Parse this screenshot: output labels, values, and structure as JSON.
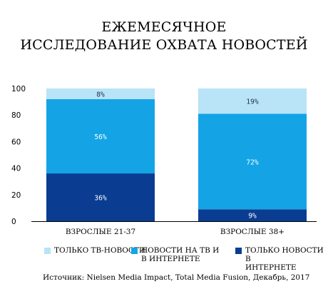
{
  "title_lines": [
    "ЕЖЕМЕСЯЧНОЕ",
    "ИССЛЕДОВАНИЕ ОХВАТА НОВОСТЕЙ"
  ],
  "source": "Источник: Nielsen Media Impact, Total Media Fusion, Декабрь, 2017",
  "chart_data": {
    "type": "bar",
    "stacked": true,
    "categories": [
      "ВЗРОСЛЫЕ 21-37",
      "ВЗРОСЛЫЕ 38+"
    ],
    "series": [
      {
        "name": "ТОЛЬКО НОВОСТИ В\nИНТЕРНЕТЕ",
        "color": "#0a3d91",
        "values": [
          36,
          9
        ],
        "labels": [
          "36%",
          "9%"
        ]
      },
      {
        "name": "НОВОСТИ НА ТВ И\nВ ИНТЕРНЕТЕ",
        "color": "#14a4e6",
        "values": [
          56,
          72
        ],
        "labels": [
          "56%",
          "72%"
        ]
      },
      {
        "name": "ТОЛЬКО ТВ-НОВОСТИ",
        "color": "#b9e3f6",
        "values": [
          8,
          19
        ],
        "labels": [
          "8%",
          "19%"
        ]
      }
    ],
    "legend_order": [
      2,
      1,
      0
    ],
    "yticks": [
      "0",
      "20",
      "40",
      "60",
      "80",
      "100"
    ],
    "ylim": [
      0,
      100
    ],
    "grid": false,
    "legend_position": "bottom"
  }
}
